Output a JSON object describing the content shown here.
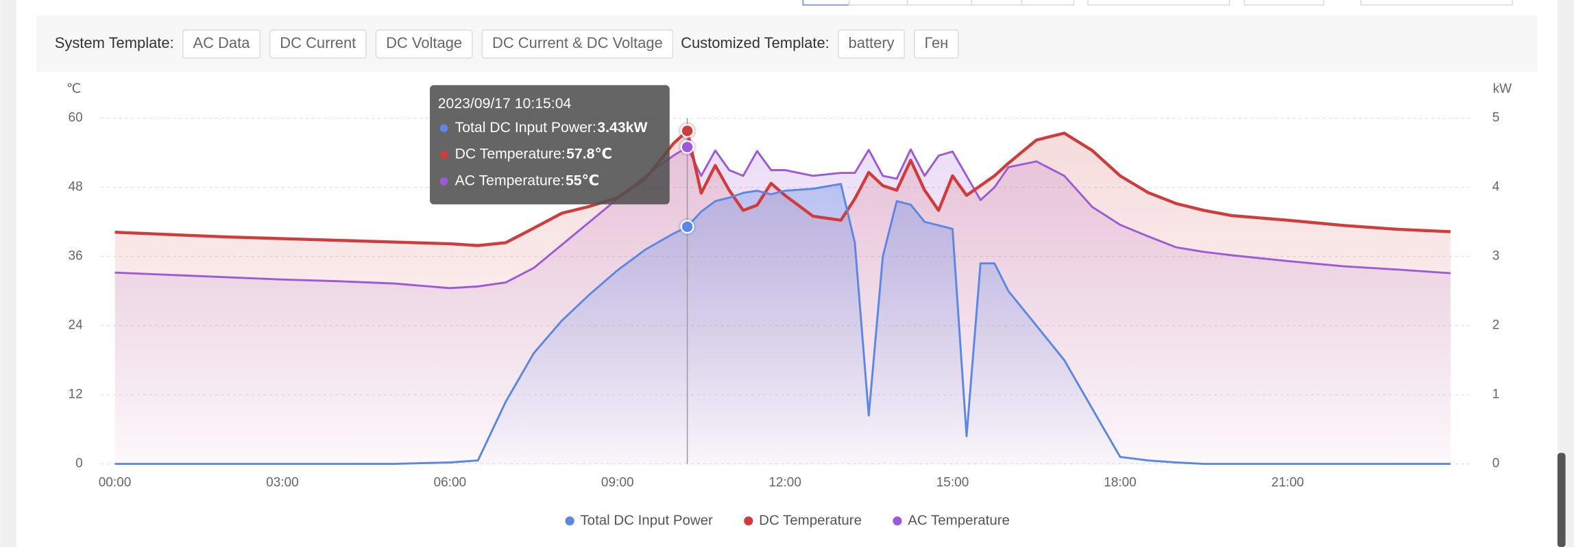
{
  "toolbar": {
    "system_label": "System Template:",
    "system_buttons": [
      "AC Data",
      "DC Current",
      "DC Voltage",
      "DC Current & DC Voltage"
    ],
    "custom_label": "Customized Template:",
    "custom_buttons": [
      "battery",
      "Ген"
    ]
  },
  "chart_data": {
    "type": "line",
    "y_unit": "℃",
    "y2_unit": "kW",
    "grid": true,
    "x": [
      "00:00",
      "01:00",
      "02:00",
      "03:00",
      "04:00",
      "05:00",
      "06:00",
      "06:30",
      "07:00",
      "07:30",
      "08:00",
      "08:30",
      "09:00",
      "09:30",
      "10:00",
      "10:15",
      "10:30",
      "10:45",
      "11:00",
      "11:15",
      "11:30",
      "11:45",
      "12:00",
      "12:30",
      "13:00",
      "13:15",
      "13:30",
      "13:45",
      "14:00",
      "14:15",
      "14:30",
      "14:45",
      "15:00",
      "15:15",
      "15:30",
      "15:45",
      "16:00",
      "16:30",
      "17:00",
      "17:30",
      "18:00",
      "18:30",
      "19:00",
      "19:30",
      "20:00",
      "21:00",
      "22:00",
      "23:00",
      "23:55"
    ],
    "xlim": [
      "00:00",
      "24:00"
    ],
    "xticks": [
      "00:00",
      "03:00",
      "06:00",
      "09:00",
      "12:00",
      "15:00",
      "18:00",
      "21:00"
    ],
    "ylim": [
      0,
      60
    ],
    "yticks": [
      0,
      12,
      24,
      36,
      48,
      60
    ],
    "y2lim": [
      0,
      5
    ],
    "y2ticks": [
      0,
      1,
      2,
      3,
      4,
      5
    ],
    "series": [
      {
        "name": "Total DC Input Power",
        "color": "#5b86e5",
        "axis": "y2",
        "values": [
          0,
          0,
          0,
          0,
          0,
          0,
          0.02,
          0.05,
          0.9,
          1.6,
          2.07,
          2.45,
          2.8,
          3.1,
          3.33,
          3.43,
          3.65,
          3.8,
          3.85,
          3.92,
          3.95,
          3.9,
          3.95,
          3.98,
          4.05,
          3.2,
          0.7,
          3.0,
          3.8,
          3.75,
          3.5,
          3.45,
          3.4,
          0.4,
          2.9,
          2.9,
          2.5,
          2.0,
          1.5,
          0.8,
          0.1,
          0.05,
          0.02,
          0,
          0,
          0,
          0,
          0,
          0
        ]
      },
      {
        "name": "DC Temperature",
        "color": "#d03b3b",
        "values": [
          40.2,
          39.8,
          39.4,
          39.1,
          38.8,
          38.5,
          38.2,
          37.9,
          38.4,
          40.9,
          43.5,
          44.7,
          46.2,
          49.5,
          55.6,
          57.8,
          47,
          51.8,
          47.5,
          44,
          44.9,
          48.7,
          46.6,
          43,
          42.3,
          46,
          50.6,
          48.3,
          47.5,
          52.7,
          47.5,
          44,
          50,
          46.6,
          48.3,
          50,
          52.2,
          56.2,
          57.4,
          54.4,
          50,
          47.1,
          45.2,
          44,
          43.1,
          42.3,
          41.4,
          40.7,
          40.3
        ]
      },
      {
        "name": "AC Temperature",
        "color": "#9c5ad8",
        "values": [
          33.2,
          32.8,
          32.4,
          32,
          31.7,
          31.3,
          30.5,
          30.8,
          31.5,
          34,
          38,
          42,
          46,
          50,
          53.5,
          55,
          50,
          54.4,
          51,
          50,
          54.3,
          51,
          51,
          50,
          50.5,
          50.5,
          54.5,
          50,
          49.5,
          54.6,
          50,
          53.5,
          54.2,
          50,
          45.8,
          48,
          51.5,
          52.5,
          50,
          44.6,
          41.5,
          39.5,
          37.6,
          36.8,
          36.2,
          35.2,
          34.3,
          33.7,
          33.1
        ]
      }
    ],
    "tooltip": {
      "index": 15,
      "title": "2023/09/17 10:15:04",
      "items": [
        {
          "label": "Total DC Input Power:",
          "value": "3.43kW"
        },
        {
          "label": "DC Temperature:",
          "value": "57.8℃"
        },
        {
          "label": "AC Temperature:",
          "value": "55℃"
        }
      ]
    }
  }
}
